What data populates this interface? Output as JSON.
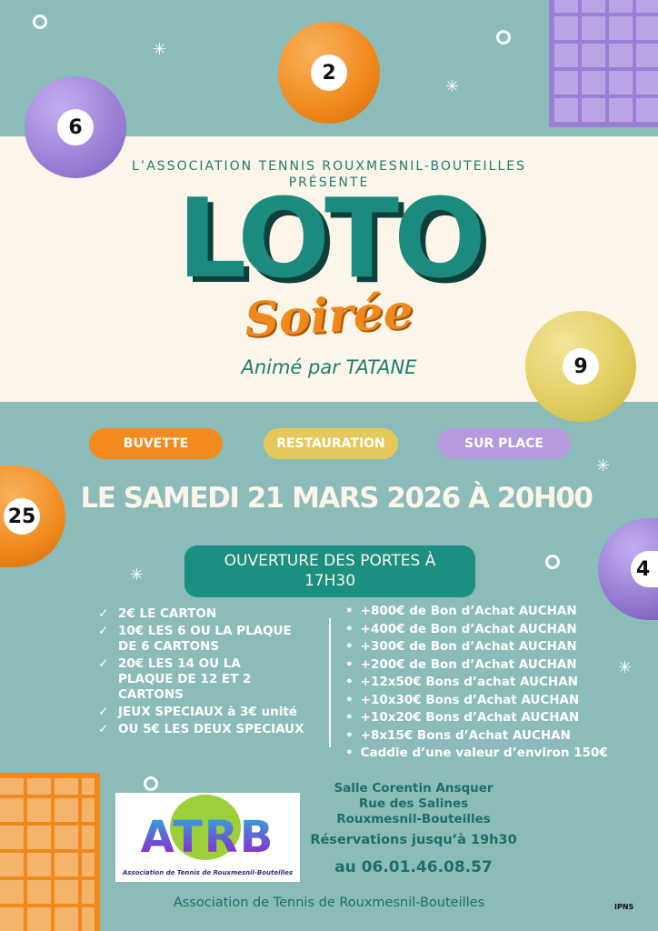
{
  "balls": [
    {
      "number": "6",
      "color": "#9b7fd6"
    },
    {
      "number": "2",
      "color": "#f0891c"
    },
    {
      "number": "9",
      "color": "#e0cc5c"
    },
    {
      "number": "25",
      "color": "#f0891c"
    },
    {
      "number": "4",
      "color": "#9b7fd6"
    }
  ],
  "header": {
    "association": "L’ASSOCIATION TENNIS ROUXMESNIL-BOUTEILLES",
    "presents": "PRÉSENTE",
    "title": "LOTO",
    "subtitle": "Soirée",
    "host": "Animé par TATANE"
  },
  "tags": [
    {
      "label": "BUVETTE",
      "color": "#f28a1e"
    },
    {
      "label": "RESTAURATION",
      "color": "#e6c85a"
    },
    {
      "label": "SUR PLACE",
      "color": "#b59ae0"
    }
  ],
  "date": "LE SAMEDI 21 MARS 2026 À 20H00",
  "doors": {
    "line1": "OUVERTURE DES PORTES À",
    "line2": "17H30"
  },
  "prices": [
    [
      "2€ LE CARTON"
    ],
    [
      "10€ LES 6 OU LA PLAQUE",
      "DE  6 CARTONS"
    ],
    [
      "20€ LES 14 OU LA",
      "PLAQUE DE 12 ET 2",
      "CARTONS"
    ],
    [
      "JEUX SPECIAUX à 3€ unité"
    ],
    [
      "OU 5€ LES DEUX SPECIAUX"
    ]
  ],
  "prizes": [
    "+800€ de Bon d’Achat AUCHAN",
    "+400€ de Bon d’Achat AUCHAN",
    "+300€ de Bon d’Achat AUCHAN",
    "+200€ de Bon d’Achat AUCHAN",
    "+12x50€ Bons d’achat AUCHAN",
    "+10x30€  Bons d’Achat AUCHAN",
    "+10x20€  Bons d’Achat AUCHAN",
    "+8x15€  Bons d’Achat AUCHAN",
    "Caddie d’une valeur d’environ 150€"
  ],
  "logo": {
    "letters": "ATRB",
    "caption": "Association de Tennis de Rouxmesnil-Bouteilles"
  },
  "venue": {
    "line1": "Salle Corentin Ansquer",
    "line2": "Rue des Salines",
    "line3": "Rouxmesnil-Bouteilles",
    "reservations": "Réservations jusqu’à 19h30",
    "phone": "au 06.01.46.08.57"
  },
  "footer": "Association de Tennis de Rouxmesnil-Bouteilles",
  "ipns": "IPNS"
}
